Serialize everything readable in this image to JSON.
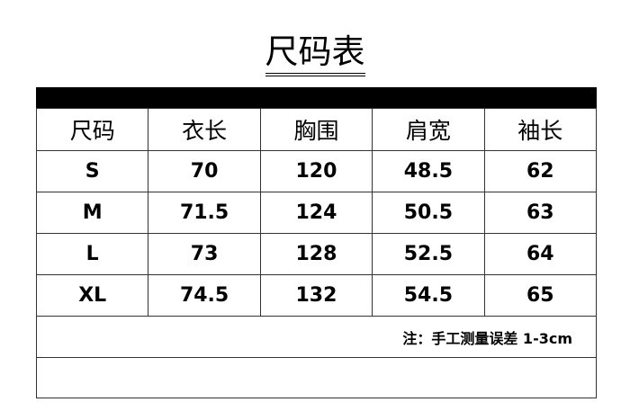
{
  "title": "尺码表",
  "headers": [
    "尺码",
    "衣长",
    "胸围",
    "肩宽",
    "袖长"
  ],
  "rows": [
    [
      "S",
      "70",
      "120",
      "48.5",
      "62"
    ],
    [
      "M",
      "71.5",
      "124",
      "50.5",
      "63"
    ],
    [
      "L",
      "73",
      "128",
      "52.5",
      "64"
    ],
    [
      "XL",
      "74.5",
      "132",
      "54.5",
      "65"
    ]
  ],
  "note": "注：手工测量误差 1-3cm"
}
